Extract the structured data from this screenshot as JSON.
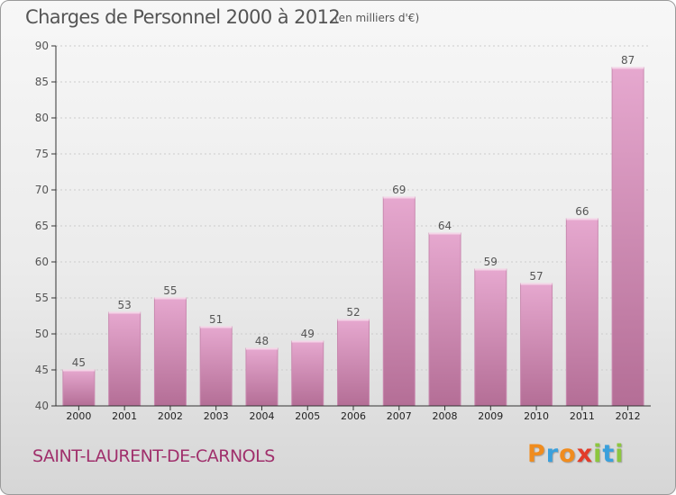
{
  "header": {
    "title": "Charges de Personnel 2000 à 2012",
    "subtitle": "(en milliers d'€)"
  },
  "footer": {
    "commune": "SAINT-LAURENT-DE-CARNOLS",
    "logo": {
      "letters": [
        "P",
        "r",
        "o",
        "x",
        "i",
        "t",
        "i"
      ],
      "colors": [
        "#f08c1e",
        "#3aa0dc",
        "#f08c1e",
        "#e23c2a",
        "#8cc63f",
        "#3aa0dc",
        "#8cc63f"
      ]
    }
  },
  "colors": {
    "bar_top": "#e6a8cf",
    "bar_bottom": "#b46e96",
    "bar_edge": "#c98ab0",
    "axis": "#333333",
    "grid": "#cccccc",
    "text": "#555555",
    "commune": "#a0306c"
  },
  "chart_data": {
    "type": "bar",
    "title": "Charges de Personnel 2000 à 2012",
    "subtitle": "(en milliers d'€)",
    "categories": [
      "2000",
      "2001",
      "2002",
      "2003",
      "2004",
      "2005",
      "2006",
      "2007",
      "2008",
      "2009",
      "2010",
      "2011",
      "2012"
    ],
    "values": [
      45,
      53,
      55,
      51,
      48,
      49,
      52,
      69,
      64,
      59,
      57,
      66,
      87
    ],
    "ylim": [
      40,
      90
    ],
    "yticks": [
      40,
      45,
      50,
      55,
      60,
      65,
      70,
      75,
      80,
      85,
      90
    ],
    "grid": "horizontal dotted",
    "data_labels": true
  }
}
